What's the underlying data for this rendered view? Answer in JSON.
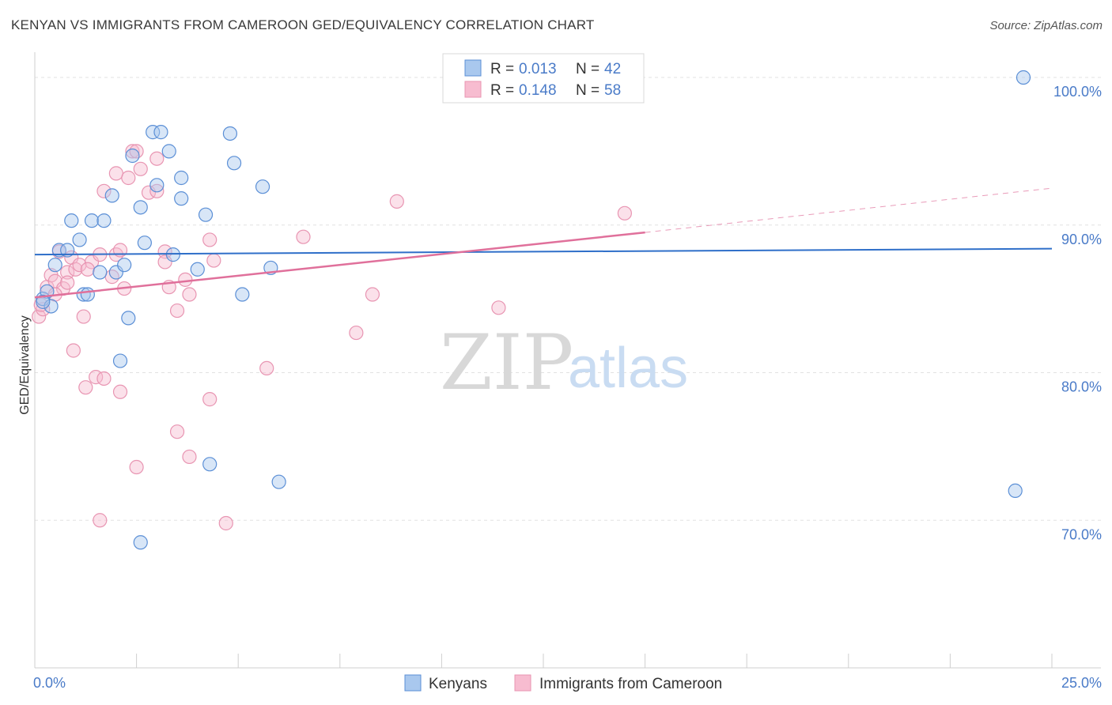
{
  "title": "KENYAN VS IMMIGRANTS FROM CAMEROON GED/EQUIVALENCY CORRELATION CHART",
  "source": "Source: ZipAtlas.com",
  "watermark": {
    "zip": "ZIP",
    "atlas": "atlas"
  },
  "colors": {
    "kenyan_fill": "#a9c8ee",
    "kenyan_stroke": "#5b8fd6",
    "kenyan_line": "#2f6fc9",
    "cameroon_fill": "#f7bcd0",
    "cameroon_stroke": "#e895b2",
    "cameroon_line": "#e0709b",
    "tick": "#4a7bc8",
    "grid": "#e2e2e2"
  },
  "legend": {
    "rows": [
      {
        "r_label": "R = ",
        "r_value": "0.013",
        "n_label": "N = ",
        "n_value": "42"
      },
      {
        "r_label": "R = ",
        "r_value": "0.148",
        "n_label": "N = ",
        "n_value": "58"
      }
    ]
  },
  "bottom_legend": [
    "Kenyans",
    "Immigrants from Cameroon"
  ],
  "chart_data": {
    "type": "scatter",
    "title": "KENYAN VS IMMIGRANTS FROM CAMEROON GED/EQUIVALENCY CORRELATION CHART",
    "xlabel": "",
    "ylabel": "GED/Equivalency",
    "xlim": [
      0,
      25
    ],
    "ylim": [
      60,
      101.5
    ],
    "x_tick_labels": [
      "0.0%",
      "25.0%"
    ],
    "y_ticks": [
      70,
      80,
      90,
      100
    ],
    "y_tick_labels": [
      "70.0%",
      "80.0%",
      "90.0%",
      "100.0%"
    ],
    "grid": "horizontal dashed",
    "legend_position": "top-center",
    "series": [
      {
        "name": "Kenyans",
        "r": 0.013,
        "n": 42,
        "trend": {
          "x0": 0,
          "y0": 88.0,
          "x1": 25,
          "y1": 88.4
        },
        "points": [
          [
            0.2,
            85.0
          ],
          [
            0.3,
            85.5
          ],
          [
            0.4,
            84.5
          ],
          [
            0.5,
            87.3
          ],
          [
            0.6,
            88.3
          ],
          [
            0.8,
            88.3
          ],
          [
            0.9,
            90.3
          ],
          [
            1.1,
            89.0
          ],
          [
            1.2,
            85.3
          ],
          [
            1.3,
            85.3
          ],
          [
            1.4,
            90.3
          ],
          [
            1.6,
            86.8
          ],
          [
            1.7,
            90.3
          ],
          [
            1.9,
            92.0
          ],
          [
            2.0,
            86.8
          ],
          [
            2.1,
            80.8
          ],
          [
            2.2,
            87.3
          ],
          [
            2.3,
            83.7
          ],
          [
            2.4,
            94.7
          ],
          [
            2.6,
            91.2
          ],
          [
            2.7,
            88.8
          ],
          [
            2.9,
            96.3
          ],
          [
            3.0,
            92.7
          ],
          [
            3.1,
            96.3
          ],
          [
            3.3,
            95.0
          ],
          [
            3.4,
            88.0
          ],
          [
            3.6,
            93.2
          ],
          [
            3.6,
            91.8
          ],
          [
            4.0,
            87.0
          ],
          [
            4.2,
            90.7
          ],
          [
            4.3,
            73.8
          ],
          [
            4.8,
            96.2
          ],
          [
            4.9,
            94.2
          ],
          [
            5.1,
            85.3
          ],
          [
            5.6,
            92.6
          ],
          [
            5.8,
            87.1
          ],
          [
            6.0,
            72.6
          ],
          [
            10.3,
            100.0
          ],
          [
            24.3,
            100.0
          ],
          [
            24.1,
            72.0
          ],
          [
            2.6,
            68.5
          ],
          [
            0.2,
            84.8
          ]
        ]
      },
      {
        "name": "Immigrants from Cameroon",
        "r": 0.148,
        "n": 58,
        "trend": {
          "x0": 0,
          "y0": 85.1,
          "x1": 15,
          "y1": 89.5
        },
        "trend_extended": {
          "x0": 15,
          "y0": 89.5,
          "x1": 25,
          "y1": 92.5
        },
        "points": [
          [
            0.1,
            83.8
          ],
          [
            0.2,
            84.3
          ],
          [
            0.3,
            85.8
          ],
          [
            0.4,
            86.6
          ],
          [
            0.5,
            86.2
          ],
          [
            0.6,
            88.2
          ],
          [
            0.7,
            85.7
          ],
          [
            0.8,
            86.8
          ],
          [
            0.9,
            87.8
          ],
          [
            0.95,
            81.5
          ],
          [
            1.0,
            87.0
          ],
          [
            1.1,
            87.3
          ],
          [
            1.2,
            83.8
          ],
          [
            1.25,
            79.0
          ],
          [
            1.4,
            87.5
          ],
          [
            1.5,
            79.7
          ],
          [
            1.6,
            88.0
          ],
          [
            1.7,
            92.3
          ],
          [
            1.6,
            70.0
          ],
          [
            1.7,
            79.6
          ],
          [
            1.9,
            86.5
          ],
          [
            2.0,
            88.0
          ],
          [
            2.0,
            93.5
          ],
          [
            2.1,
            88.3
          ],
          [
            2.1,
            78.7
          ],
          [
            2.2,
            85.7
          ],
          [
            2.3,
            93.2
          ],
          [
            2.4,
            95.0
          ],
          [
            2.5,
            95.0
          ],
          [
            2.5,
            73.6
          ],
          [
            2.6,
            93.8
          ],
          [
            2.8,
            92.2
          ],
          [
            3.0,
            92.3
          ],
          [
            3.0,
            94.5
          ],
          [
            3.2,
            88.2
          ],
          [
            3.2,
            87.5
          ],
          [
            3.3,
            85.8
          ],
          [
            3.5,
            84.2
          ],
          [
            3.5,
            76.0
          ],
          [
            3.7,
            86.3
          ],
          [
            3.8,
            85.3
          ],
          [
            3.8,
            74.3
          ],
          [
            4.3,
            78.2
          ],
          [
            4.3,
            89.0
          ],
          [
            4.4,
            87.6
          ],
          [
            4.7,
            69.8
          ],
          [
            5.7,
            80.3
          ],
          [
            6.6,
            89.2
          ],
          [
            7.9,
            82.7
          ],
          [
            8.3,
            85.3
          ],
          [
            8.9,
            91.6
          ],
          [
            11.4,
            84.4
          ],
          [
            12.0,
            100.0
          ],
          [
            14.5,
            90.8
          ],
          [
            0.15,
            84.6
          ],
          [
            0.5,
            85.3
          ],
          [
            0.8,
            86.1
          ],
          [
            1.3,
            87.0
          ]
        ]
      }
    ]
  }
}
